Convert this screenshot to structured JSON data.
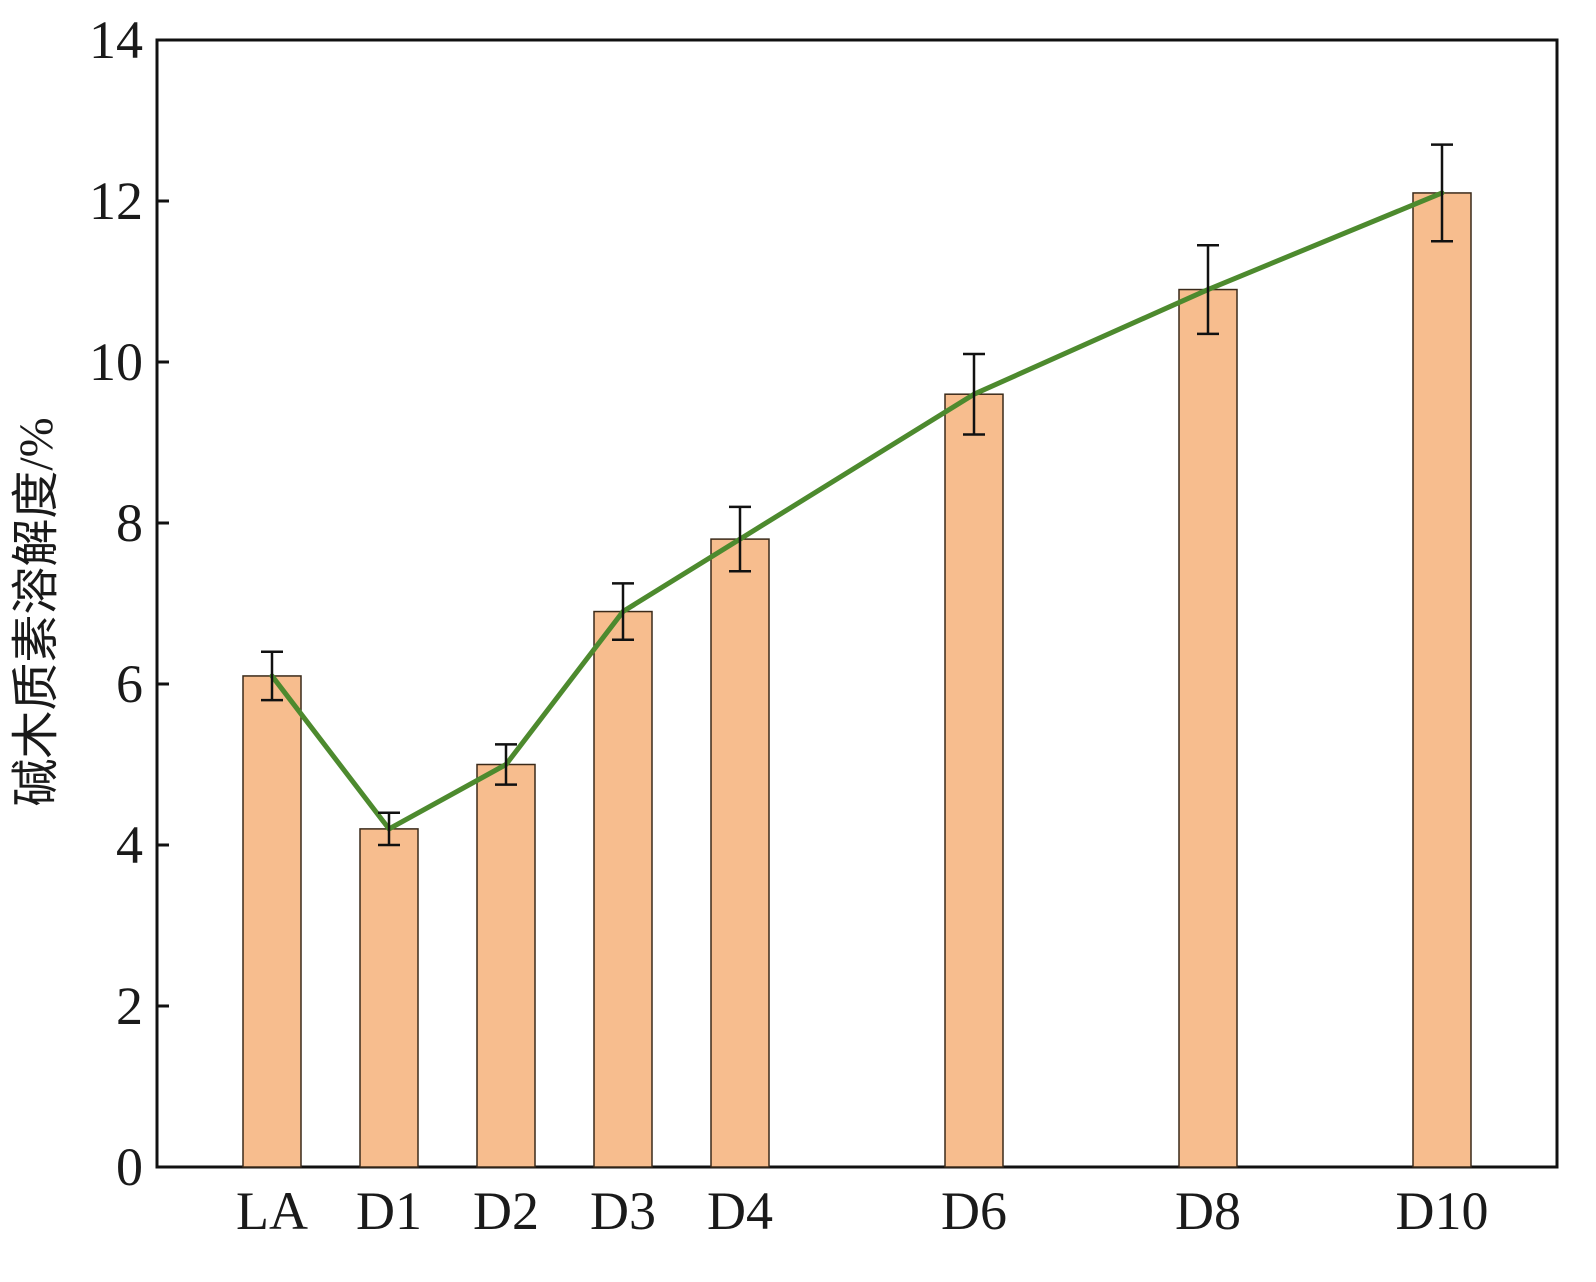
{
  "chart_data": {
    "type": "bar",
    "title": "",
    "xlabel": "",
    "ylabel": "碱木质素溶解度/%",
    "ylim": [
      0,
      14
    ],
    "yticks": [
      "0",
      "2",
      "4",
      "6",
      "8",
      "10",
      "12",
      "14"
    ],
    "grid": false,
    "x_scale": "categorical with gaps (D5, D7, D9 omitted)",
    "categories": [
      "LA",
      "D1",
      "D2",
      "D3",
      "D4",
      "D6",
      "D8",
      "D10"
    ],
    "x_positions": [
      0,
      1,
      2,
      3,
      4,
      6,
      8,
      10
    ],
    "values": [
      6.1,
      4.2,
      5.0,
      6.9,
      7.8,
      9.6,
      10.9,
      12.1
    ],
    "error_low": [
      5.8,
      4.0,
      4.75,
      6.55,
      7.4,
      9.1,
      10.35,
      11.5
    ],
    "error_high": [
      6.4,
      4.4,
      5.25,
      7.25,
      8.2,
      10.1,
      11.45,
      12.7
    ],
    "overlay_line": {
      "values": [
        6.1,
        4.2,
        5.0,
        6.9,
        7.8,
        9.6,
        10.9,
        12.1
      ]
    },
    "colors": {
      "bar_fill": "#f7bd8e",
      "bar_stroke": "#3a2a1a",
      "line": "#4d8a2e",
      "error_bar": "#111111",
      "axis": "#111111"
    }
  }
}
